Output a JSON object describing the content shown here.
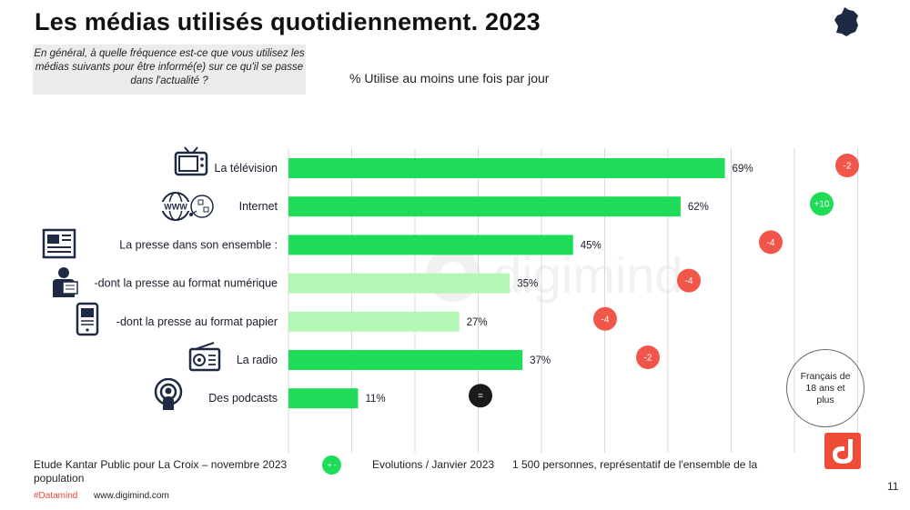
{
  "header": {
    "title": "Les médias utilisés quotidiennement. 2023",
    "question": "En général, à quelle fréquence est-ce que vous utilisez les médias suivants pour être informé(e) sur ce qu'il se passe dans l'actualité ?",
    "subtitle": "% Utilise au moins une fois par jour"
  },
  "chart_data": {
    "type": "bar",
    "orientation": "horizontal",
    "categories": [
      "La télévision",
      "Internet",
      "La presse dans son ensemble :",
      "-dont la presse au format numérique",
      "-dont la presse au format papier",
      "La radio",
      "Des podcasts"
    ],
    "values": [
      69,
      62,
      45,
      35,
      27,
      37,
      11
    ],
    "value_labels": [
      "69%",
      "62%",
      "45%",
      "35%",
      "27%",
      "37%",
      "11%"
    ],
    "bar_colors": [
      "#1fdc58",
      "#1fdc58",
      "#1fdc58",
      "#b4f7b4",
      "#b4f7b4",
      "#1fdc58",
      "#1fdc58"
    ],
    "evolutions": [
      "-2",
      "+10",
      "-4",
      "-4",
      "-4",
      "-2",
      "="
    ],
    "evolution_colors": [
      "#f0564a",
      "#1fdc58",
      "#f0564a",
      "#f0564a",
      "#f0564a",
      "#f0564a",
      "#1a1a1a"
    ],
    "xlim": [
      0,
      100
    ],
    "grid": true,
    "grid_color": "#d9d9d9",
    "icons": [
      "tv-icon",
      "globe-www-icon",
      "newspaper-icon",
      "person-reading-icon",
      "tablet-icon",
      "radio-icon",
      "podcast-icon"
    ]
  },
  "sample": "Français de 18 ans et plus",
  "footer": {
    "source": "Etude Kantar Public pour La Croix – novembre 2023",
    "source_line2": "population",
    "legend_symbol": "+ -",
    "evolution_label": "Evolutions / Janvier 2023",
    "sample_size": "1 500 personnes, représentatif de l'ensemble de la",
    "hashtag": "#Datamind",
    "website": "www.digimind.com",
    "page_number": "11"
  },
  "watermark": "digimind",
  "colors": {
    "primary_bar": "#1fdc58",
    "secondary_bar": "#b4f7b4",
    "negative": "#f0564a",
    "neutral": "#1a1a1a",
    "brand": "#ee4b39"
  }
}
